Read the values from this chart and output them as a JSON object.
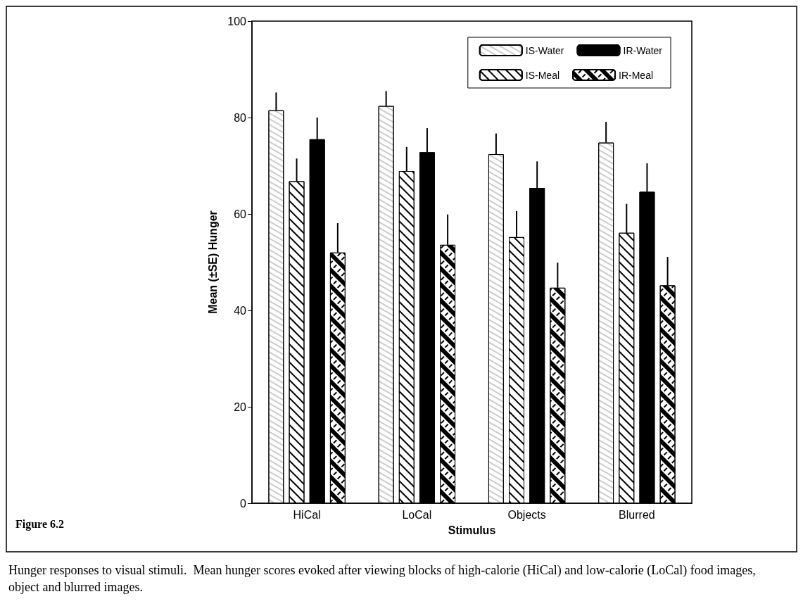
{
  "chart_data": {
    "type": "bar",
    "xlabel": "Stimulus",
    "ylabel": "Mean (±SE) Hunger",
    "categories": [
      "HiCal",
      "LoCal",
      "Objects",
      "Blurred"
    ],
    "series": [
      {
        "name": "IS-Water",
        "color": "#ffffff",
        "values": [
          81.5,
          82.4,
          72.4,
          74.8
        ],
        "errors": [
          [
            81.5,
            85.2
          ],
          [
            82.4,
            85.5
          ],
          [
            72.4,
            76.7
          ],
          [
            74.8,
            79.1
          ]
        ]
      },
      {
        "name": "IS-Meal",
        "color": "#ffffff",
        "values": [
          66.8,
          68.9,
          55.2,
          56.1
        ],
        "errors": [
          [
            66.8,
            71.5
          ],
          [
            68.9,
            73.9
          ],
          [
            55.2,
            60.6
          ],
          [
            56.1,
            62.1
          ]
        ]
      },
      {
        "name": "IR-Water",
        "color": "#000000",
        "values": [
          75.5,
          72.8,
          65.4,
          64.6
        ],
        "errors": [
          [
            75.5,
            80.0
          ],
          [
            72.8,
            77.8
          ],
          [
            65.4,
            70.9
          ],
          [
            64.6,
            70.5
          ]
        ]
      },
      {
        "name": "IR-Meal",
        "color": "#ffffff",
        "values": [
          52.0,
          53.6,
          44.7,
          45.2
        ],
        "errors": [
          [
            52.0,
            58.1
          ],
          [
            53.6,
            59.9
          ],
          [
            44.7,
            49.9
          ],
          [
            45.2,
            51.1
          ]
        ]
      }
    ],
    "ylim": [
      0,
      100
    ],
    "yticks": [
      0,
      20,
      40,
      60,
      80,
      100
    ],
    "grid": false,
    "legend": "top right",
    "annotations": [
      "Figure 6.2",
      "Hunger responses to visual stimuli.  Mean hunger scores evoked after viewing blocks of high-calorie (HiCal) and low-calorie (LoCal) food images, object and blurred images."
    ]
  }
}
